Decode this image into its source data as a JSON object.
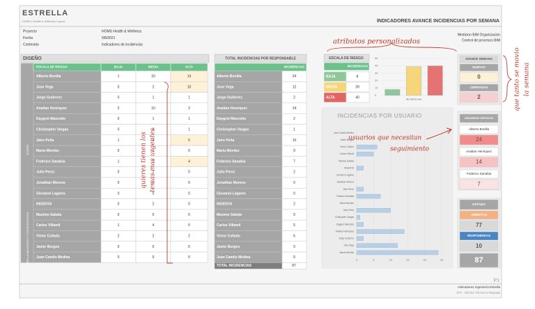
{
  "header": {
    "logo": "ESTRELLA",
    "logo_sub": "HOMS | Health & Wellness Layout",
    "title": "INDICADORES AVANCE INCIDENCIAS POR SEMANA"
  },
  "info": {
    "rows": [
      [
        "Proyecto",
        "HOMS Health & Wellness"
      ],
      [
        "Fecha",
        "5/8/2021"
      ],
      [
        "Contenido",
        "Indicadores de incidencias"
      ]
    ],
    "right": [
      "Medicion BIM Organizacion",
      "Control de procesos BIM"
    ]
  },
  "design_table": {
    "title": "DISEÑO",
    "side_labels": [
      "DISEÑO",
      "ESTRELLA BENDICION Y CONSTRUCCION"
    ],
    "columns": [
      "ESCALA DE RIESGO",
      "BAJA",
      "MEDIA",
      "ALTA"
    ],
    "rows": [
      [
        "Alberto Bonilla",
        1,
        10,
        13
      ],
      [
        "Jose Vega",
        0,
        2,
        10
      ],
      [
        "Jorge Gutierrez",
        0,
        1,
        1
      ],
      [
        "Analtan Henriquez",
        2,
        10,
        2
      ],
      [
        "Daygrot Manzotto",
        0,
        1,
        1
      ],
      [
        "Christopher Vargas",
        0,
        0,
        1
      ],
      [
        "Jairo Peña",
        1,
        3,
        6
      ],
      [
        "Maria Mendez",
        0,
        0,
        0
      ],
      [
        "Federico Sanabia",
        1,
        2,
        4
      ],
      [
        "Julio Perez",
        0,
        2,
        0
      ],
      [
        "Jonathan Moreno",
        0,
        0,
        0
      ],
      [
        "Giovanni Lagares",
        0,
        0,
        0
      ],
      [
        "INGENYA",
        0,
        2,
        0
      ],
      [
        "Maximo Sabala",
        0,
        0,
        0
      ],
      [
        "Carlos Villamil",
        1,
        4,
        0
      ],
      [
        "Victor Collado",
        2,
        2,
        2
      ],
      [
        "Javier Burgos",
        0,
        0,
        0
      ],
      [
        "Juan Camilo Medina",
        0,
        0,
        0
      ]
    ]
  },
  "total_table": {
    "title": "TOTAL INCIDENCIAS POR RESPONSABLE",
    "column": "INCIDENCIAS",
    "rows": [
      [
        "Alberto Bonilla",
        24
      ],
      [
        "Jose Vega",
        12
      ],
      [
        "Jorge Gutierrez",
        2
      ],
      [
        "Analtan Henriquez",
        14
      ],
      [
        "Daygrot Manzotto",
        2
      ],
      [
        "Christopher Vargas",
        1
      ],
      [
        "Jairo Peña",
        10
      ],
      [
        "Maria Mendez",
        0
      ],
      [
        "Federico Sanabia",
        7
      ],
      [
        "Julio Perez",
        2
      ],
      [
        "Jonathan Moreno",
        0
      ],
      [
        "Giovanni Lagares",
        0
      ],
      [
        "INGENYA",
        2
      ],
      [
        "Maximo Sabala",
        0
      ],
      [
        "Carlos Villamil",
        5
      ],
      [
        "Victor Collado",
        6
      ],
      [
        "Javier Burgos",
        0
      ],
      [
        "Juan Camilo Medina",
        0
      ]
    ],
    "total_label": "TOTAL INCIDENCIAS",
    "total": 87
  },
  "risk_scale": {
    "title": "ESCALA DE RIESGO",
    "column": "INCIDENCIAS",
    "rows": [
      [
        "BAJA",
        8
      ],
      [
        "MEDIA",
        39
      ],
      [
        "ALTA",
        40
      ]
    ],
    "colors": [
      "#8fc79a",
      "#f6d67a",
      "#e06666"
    ]
  },
  "chart_data": [
    {
      "type": "bar",
      "xlabel": "INCIDENCIAS",
      "values": [
        8,
        39,
        40
      ],
      "colors": [
        "#8fc79a",
        "#f6d67a",
        "#e57373"
      ],
      "ylim": [
        0,
        50
      ],
      "yticks": [
        0,
        10,
        20,
        30,
        40,
        50
      ]
    },
    {
      "type": "barh",
      "title": "INCIDENCIAS POR USUARIO",
      "categories": [
        "Juan Camilo Medina",
        "Javier Burgos",
        "Victor Collado",
        "Carlos Villamil",
        "Maximo Sabala",
        "INGENYA",
        "Giovanni Lagares",
        "Jonathan Moreno",
        "Julio Perez",
        "Federico Sanabia",
        "Maria Mendez",
        "Jairo Peña",
        "Christopher Vargas",
        "Daygrot Manzotto",
        "Analtan Henriquez",
        "Jorge Gutierrez",
        "Jose Vega",
        "Alberto Bonilla"
      ],
      "values": [
        0,
        0,
        6,
        5,
        0,
        2,
        0,
        0,
        2,
        7,
        0,
        10,
        1,
        2,
        14,
        2,
        12,
        24
      ],
      "color": "#b9cfe6",
      "xlim": [
        0,
        25
      ],
      "xticks": [
        0,
        5,
        10,
        15,
        20,
        25
      ]
    }
  ],
  "weekly": {
    "title": "AVANCE SEMANA",
    "items": [
      {
        "label": "NUEVAS",
        "value": 0
      },
      {
        "label": "CERRADAS",
        "value": 2
      }
    ]
  },
  "critical_users": {
    "title": "USUARIOS CRITICOS",
    "items": [
      {
        "name": "Alberto Bonilla",
        "value": 24
      },
      {
        "name": "Analtan Henriquez",
        "value": 14
      },
      {
        "name": "Federico Sanabia",
        "value": 7
      }
    ]
  },
  "status": {
    "title": "ESTADO",
    "items": [
      {
        "label": "ABIERTAS",
        "value": 77
      },
      {
        "label": "RESPONDIDAS",
        "value": 10
      }
    ],
    "total": 87
  },
  "footer": {
    "page": "P1",
    "lines": [
      "Indicadores Ingeniería Estrella",
      "DTI - Oficina Técnica Integrada"
    ]
  },
  "annotations": [
    [
      "atributos personalizados"
    ],
    [
      "usuarios que necesitan",
      "seguimiento"
    ],
    [
      "quieres tienen los",
      "temas mas urgentes"
    ],
    [
      "que tanto se movio",
      "la semana"
    ]
  ]
}
